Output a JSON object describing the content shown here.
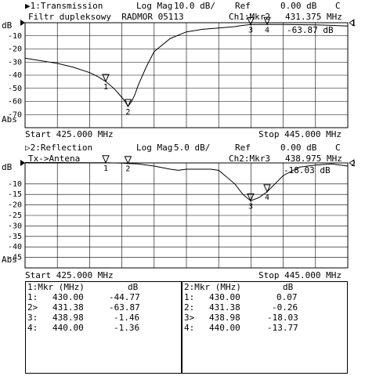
{
  "chart_data": [
    {
      "type": "line",
      "channel": "▶1:Transmission",
      "format": "Log Mag",
      "scale": "10.0 dB/",
      "ref": "Ref",
      "ref_value": "0.00 dB",
      "flag": "C",
      "title": "Filtr dupleksowy  RADMOR 05113",
      "marker_readout_label": "Ch1:Mkr2",
      "marker_readout_freq": "431.375 MHz",
      "marker_readout_value": "-63.87 dB",
      "unit_label": "dB",
      "bottom_label": "Abs",
      "ref_marker": "1",
      "start_label": "Start 425.000 MHz",
      "stop_label": "Stop 445.000 MHz",
      "xlim": [
        425,
        445
      ],
      "ylim": [
        -80,
        0
      ],
      "y_ticks": [
        "-10",
        "-20",
        "-30",
        "-40",
        "-50",
        "-60",
        "-70"
      ],
      "y_tick_values": [
        -10,
        -20,
        -30,
        -40,
        -50,
        -60,
        -70
      ],
      "grid": true,
      "x": [
        425.0,
        426.0,
        427.0,
        428.0,
        429.0,
        429.5,
        430.0,
        430.5,
        430.8,
        431.0,
        431.2,
        431.38,
        431.6,
        431.8,
        432.0,
        432.5,
        433.0,
        434.0,
        435.0,
        436.0,
        437.0,
        438.0,
        438.5,
        438.98,
        439.5,
        440.0,
        441.0,
        442.0,
        443.0,
        444.0,
        445.0
      ],
      "y": [
        -27,
        -29,
        -31,
        -34,
        -38,
        -41,
        -44.77,
        -50,
        -54,
        -57,
        -60,
        -63.87,
        -60,
        -55,
        -48,
        -34,
        -22,
        -12,
        -7,
        -5,
        -4,
        -3,
        -2,
        -1.46,
        -1.4,
        -1.36,
        -1.4,
        -1.5,
        -1.7,
        -2,
        -2.5
      ],
      "markers": [
        {
          "label": "1",
          "x": 430.0,
          "y": -44.77
        },
        {
          "label": "2",
          "x": 431.38,
          "y": -63.87
        },
        {
          "label": "3",
          "x": 438.98,
          "y": -1.46
        },
        {
          "label": "4",
          "x": 440.0,
          "y": -1.36
        }
      ]
    },
    {
      "type": "line",
      "channel": "▷2:Reflection",
      "format": "Log Mag",
      "scale": "5.0 dB/",
      "ref": "Ref",
      "ref_value": "0.00 dB",
      "flag": "C",
      "title": "Tx->Antena",
      "marker_readout_label": "Ch2:Mkr3",
      "marker_readout_freq": "438.975 MHz",
      "marker_readout_value": "-18.03 dB",
      "unit_label": "dB",
      "bottom_label": "Abs",
      "ref_marker": "2",
      "start_label": "Start 425.000 MHz",
      "stop_label": "Stop 445.000 MHz",
      "xlim": [
        425,
        445
      ],
      "ylim": [
        -50,
        0
      ],
      "y_ticks": [
        "-10",
        "-15",
        "-20",
        "-25",
        "-30",
        "-35",
        "-40",
        "-45"
      ],
      "y_tick_values": [
        -10,
        -15,
        -20,
        -25,
        -30,
        -35,
        -40,
        -45
      ],
      "grid": true,
      "x": [
        425.0,
        427.0,
        429.0,
        430.0,
        431.0,
        431.38,
        432.0,
        433.0,
        434.0,
        434.5,
        435.0,
        436.0,
        436.5,
        437.0,
        438.0,
        438.5,
        438.98,
        439.5,
        440.0,
        441.0,
        442.0,
        443.0,
        444.0,
        445.0
      ],
      "y": [
        0.2,
        0.2,
        0.1,
        0.07,
        -0.1,
        -0.26,
        -0.5,
        -1.5,
        -3.0,
        -3.5,
        -3.0,
        -3.0,
        -3.0,
        -3.5,
        -10,
        -15,
        -18.03,
        -16.5,
        -13.77,
        -6,
        -2.0,
        -1.0,
        -0.5,
        -1.5
      ],
      "markers": [
        {
          "label": "1",
          "x": 430.0,
          "y": 0.07
        },
        {
          "label": "2",
          "x": 431.38,
          "y": -0.26
        },
        {
          "label": "3",
          "x": 438.98,
          "y": -18.03
        },
        {
          "label": "4",
          "x": 440.0,
          "y": -13.77
        }
      ]
    }
  ],
  "tables": [
    {
      "header_left": "1:Mkr (MHz)",
      "header_right": "dB",
      "rows": [
        {
          "id": "1:",
          "freq": "430.00",
          "value": "-44.77"
        },
        {
          "id": "2>",
          "freq": "431.38",
          "value": "-63.87"
        },
        {
          "id": "3:",
          "freq": "438.98",
          "value": "-1.46"
        },
        {
          "id": "4:",
          "freq": "440.00",
          "value": "-1.36"
        }
      ]
    },
    {
      "header_left": "2:Mkr (MHz)",
      "header_right": "dB",
      "rows": [
        {
          "id": "1:",
          "freq": "430.00",
          "value": "0.07"
        },
        {
          "id": "2:",
          "freq": "431.38",
          "value": "-0.26"
        },
        {
          "id": "3>",
          "freq": "438.98",
          "value": "-18.03"
        },
        {
          "id": "4:",
          "freq": "440.00",
          "value": "-13.77"
        }
      ]
    }
  ]
}
